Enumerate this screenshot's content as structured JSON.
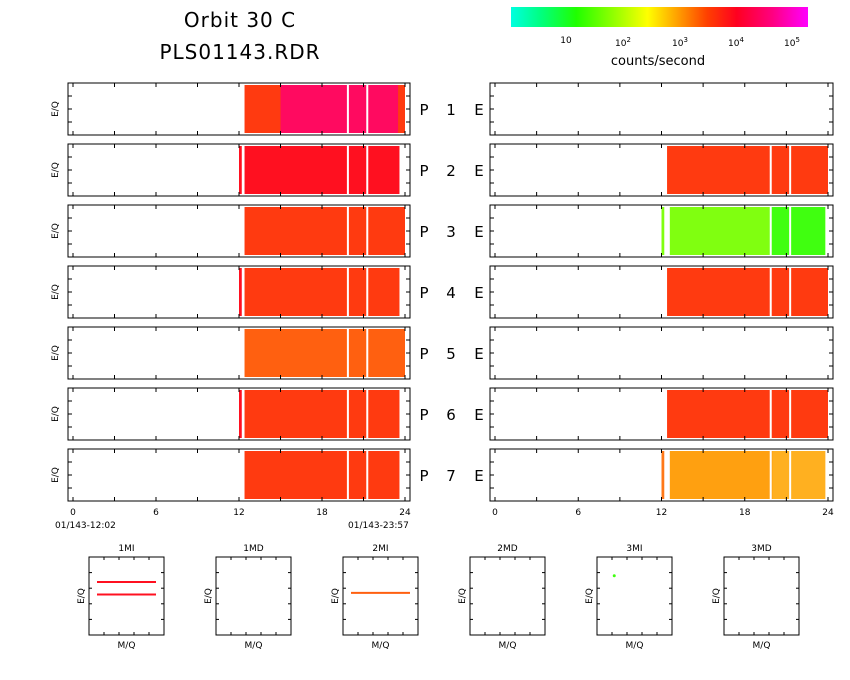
{
  "title_line1": "Orbit  30  C",
  "title_line2": "PLS01143.RDR",
  "colorbar": {
    "label": "counts/second",
    "ticks": [
      {
        "base": "10",
        "exp": ""
      },
      {
        "base": "10",
        "exp": "2"
      },
      {
        "base": "10",
        "exp": "3"
      },
      {
        "base": "10",
        "exp": "4"
      },
      {
        "base": "10",
        "exp": "5"
      }
    ]
  },
  "colors": {
    "orange_red": "#ff3a10",
    "red": "#ff1020",
    "magenta": "#ff0a60",
    "orange": "#ff6010",
    "orange2": "#ff7818",
    "green_yellow": "#80ff10",
    "green": "#40ff10",
    "amber": "#ffa010",
    "amber2": "#ffb020"
  },
  "chart_data": {
    "type": "heatmap",
    "y_axis_label": "E/Q",
    "x_ticks": [
      "0",
      "6",
      "12",
      "18",
      "24"
    ],
    "x_range": [
      0,
      24
    ],
    "start_label": "01/143-12:02",
    "end_label": "01/143-23:57",
    "rows": [
      {
        "P": "P",
        "num": "1",
        "E": "E",
        "left": {
          "spans": [
            [
              12.4,
              24,
              "orange_red"
            ],
            [
              15,
              23.5,
              "magenta"
            ]
          ]
        },
        "right": {
          "spans": []
        }
      },
      {
        "P": "P",
        "num": "2",
        "E": "E",
        "left": {
          "spans": [
            [
              12.0,
              12.2,
              "red"
            ],
            [
              12.4,
              23.6,
              "red"
            ]
          ]
        },
        "right": {
          "spans": [
            [
              12.4,
              24,
              "orange_red"
            ]
          ]
        }
      },
      {
        "P": "P",
        "num": "3",
        "E": "E",
        "left": {
          "spans": [
            [
              12.4,
              24,
              "orange_red"
            ]
          ]
        },
        "right": {
          "spans": [
            [
              12.0,
              12.2,
              "green_yellow"
            ],
            [
              12.6,
              23.8,
              "green_yellow"
            ],
            [
              19.8,
              23.8,
              "green"
            ]
          ]
        }
      },
      {
        "P": "P",
        "num": "4",
        "E": "E",
        "left": {
          "spans": [
            [
              12.0,
              12.2,
              "red"
            ],
            [
              12.4,
              23.6,
              "orange_red"
            ]
          ]
        },
        "right": {
          "spans": [
            [
              12.4,
              24,
              "orange_red"
            ]
          ]
        }
      },
      {
        "P": "P",
        "num": "5",
        "E": "E",
        "left": {
          "spans": [
            [
              12.4,
              24,
              "orange"
            ]
          ]
        },
        "right": {
          "spans": []
        }
      },
      {
        "P": "P",
        "num": "6",
        "E": "E",
        "left": {
          "spans": [
            [
              12.0,
              12.2,
              "red"
            ],
            [
              12.4,
              23.6,
              "orange_red"
            ]
          ]
        },
        "right": {
          "spans": [
            [
              12.4,
              24,
              "orange_red"
            ]
          ]
        }
      },
      {
        "P": "P",
        "num": "7",
        "E": "E",
        "left": {
          "spans": [
            [
              12.4,
              23.6,
              "orange_red"
            ]
          ]
        },
        "right": {
          "spans": [
            [
              12.0,
              12.2,
              "orange2"
            ],
            [
              12.6,
              23.8,
              "amber"
            ],
            [
              20,
              23.8,
              "amber2"
            ]
          ]
        }
      }
    ],
    "small_panels": [
      {
        "title": "1MI",
        "ylabel": "E/Q",
        "xlabel": "M/Q",
        "lines": [
          {
            "y": 0.32,
            "color": "red"
          },
          {
            "y": 0.48,
            "color": "red"
          }
        ],
        "dots": []
      },
      {
        "title": "1MD",
        "ylabel": "E/Q",
        "xlabel": "M/Q",
        "lines": [],
        "dots": []
      },
      {
        "title": "2MI",
        "ylabel": "E/Q",
        "xlabel": "M/Q",
        "lines": [
          {
            "y": 0.46,
            "color": "orange"
          }
        ],
        "dots": []
      },
      {
        "title": "2MD",
        "ylabel": "E/Q",
        "xlabel": "M/Q",
        "lines": [],
        "dots": []
      },
      {
        "title": "3MI",
        "ylabel": "E/Q",
        "xlabel": "M/Q",
        "lines": [],
        "dots": [
          {
            "x": 0.23,
            "y": 0.24,
            "color": "green"
          }
        ]
      },
      {
        "title": "3MD",
        "ylabel": "E/Q",
        "xlabel": "M/Q",
        "lines": [],
        "dots": []
      }
    ]
  }
}
